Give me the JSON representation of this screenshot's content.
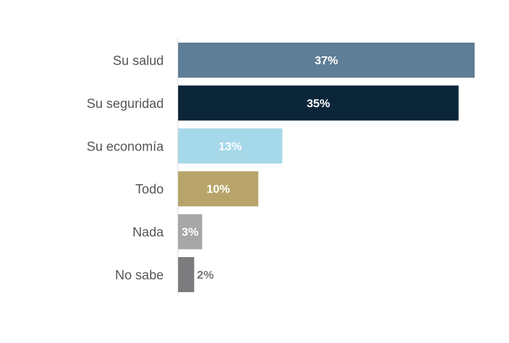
{
  "chart_data": {
    "type": "bar",
    "orientation": "horizontal",
    "categories": [
      "Su salud",
      "Su seguridad",
      "Su economía",
      "Todo",
      "Nada",
      "No sabe"
    ],
    "values": [
      37,
      35,
      13,
      10,
      3,
      2
    ],
    "data_labels": [
      "37%",
      "35%",
      "13%",
      "10%",
      "3%",
      "2%"
    ],
    "colors": [
      "#5e7d96",
      "#0b2539",
      "#a5d8e8",
      "#b8a46a",
      "#a7a7a7",
      "#7c7b7d"
    ],
    "unit": "%",
    "title": "",
    "xlabel": "",
    "ylabel": "",
    "xlim": [
      0,
      37
    ],
    "grid": false,
    "legend": "none"
  }
}
